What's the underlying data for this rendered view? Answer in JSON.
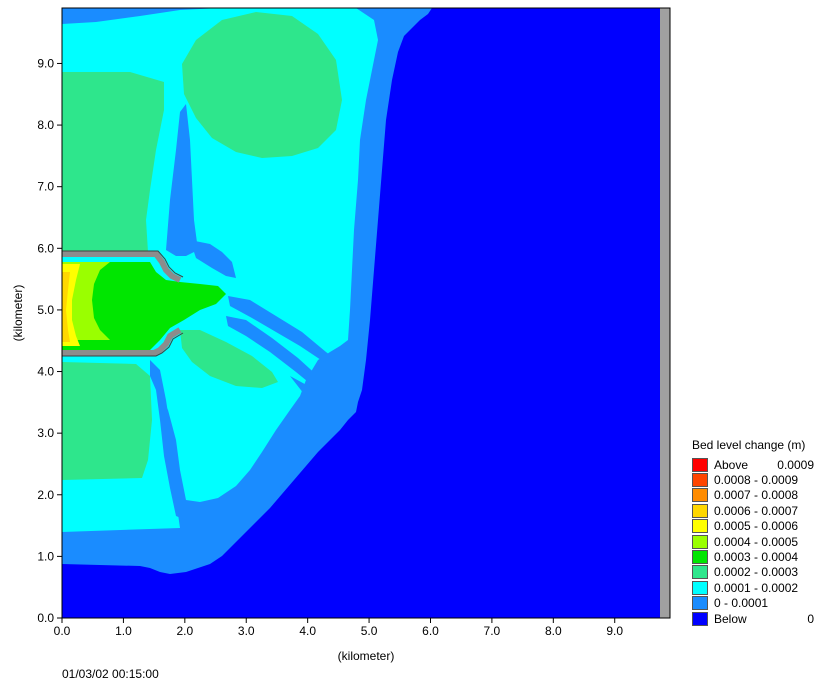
{
  "timestamp": "01/03/02 00:15:00",
  "chart_data": {
    "type": "heatmap",
    "xlabel": "(kilometer)",
    "ylabel": "(kilometer)",
    "xlim": [
      0,
      9.9
    ],
    "ylim": [
      0,
      9.9
    ],
    "xticks": [
      "0.0",
      "1.0",
      "2.0",
      "3.0",
      "4.0",
      "5.0",
      "6.0",
      "7.0",
      "8.0",
      "9.0"
    ],
    "yticks": [
      "0.0",
      "1.0",
      "2.0",
      "3.0",
      "4.0",
      "5.0",
      "6.0",
      "7.0",
      "8.0",
      "9.0"
    ],
    "legend": {
      "title": "Bed level change (m)",
      "placement": "right",
      "entries": [
        {
          "label": "Above",
          "value": "0.0009",
          "color": "#ff0000"
        },
        {
          "label": "0.0008 - 0.0009",
          "value": "",
          "color": "#ff4500"
        },
        {
          "label": "0.0007 - 0.0008",
          "value": "",
          "color": "#ff8c00"
        },
        {
          "label": "0.0006 - 0.0007",
          "value": "",
          "color": "#ffd700"
        },
        {
          "label": "0.0005 - 0.0006",
          "value": "",
          "color": "#ffff00"
        },
        {
          "label": "0.0004 - 0.0005",
          "value": "",
          "color": "#9aff00"
        },
        {
          "label": "0.0003 - 0.0004",
          "value": "",
          "color": "#00e600"
        },
        {
          "label": "0.0002 - 0.0003",
          "value": "",
          "color": "#2ee68c"
        },
        {
          "label": "0.0001 - 0.0002",
          "value": "",
          "color": "#00ffff"
        },
        {
          "label": "0 - 0.0001",
          "value": "",
          "color": "#1a8cff"
        },
        {
          "label": "Below",
          "value": "0",
          "color": "#0000ff"
        }
      ]
    }
  }
}
